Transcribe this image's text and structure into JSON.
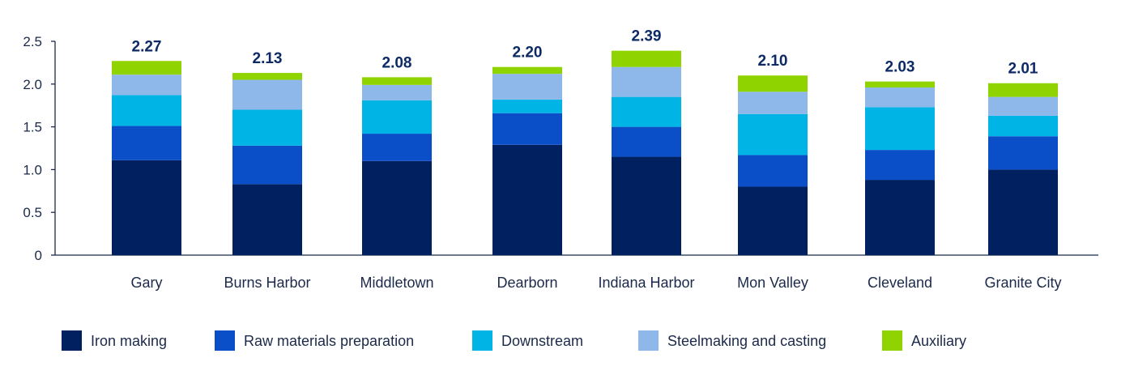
{
  "chart_data": {
    "type": "bar",
    "stacked": true,
    "categories": [
      "Gary",
      "Burns Harbor",
      "Middletown",
      "Dearborn",
      "Indiana Harbor",
      "Mon Valley",
      "Cleveland",
      "Granite City"
    ],
    "totals": [
      "2.27",
      "2.13",
      "2.08",
      "2.20",
      "2.39",
      "2.10",
      "2.03",
      "2.01"
    ],
    "series": [
      {
        "name": "Iron making",
        "color": "#002060",
        "values": [
          1.11,
          0.83,
          1.1,
          1.29,
          1.15,
          0.8,
          0.88,
          1.0
        ]
      },
      {
        "name": "Raw materials preparation",
        "color": "#0a4fc8",
        "values": [
          0.4,
          0.45,
          0.32,
          0.37,
          0.35,
          0.37,
          0.35,
          0.39
        ]
      },
      {
        "name": "Downstream",
        "color": "#00b5e6",
        "values": [
          0.36,
          0.42,
          0.39,
          0.16,
          0.35,
          0.48,
          0.5,
          0.24
        ]
      },
      {
        "name": "Steelmaking and casting",
        "color": "#8fb8ea",
        "values": [
          0.24,
          0.35,
          0.18,
          0.3,
          0.35,
          0.26,
          0.23,
          0.22
        ]
      },
      {
        "name": "Auxiliary",
        "color": "#8fd400",
        "values": [
          0.16,
          0.08,
          0.09,
          0.08,
          0.19,
          0.19,
          0.07,
          0.16
        ]
      }
    ],
    "yticks": [
      "0",
      "0.5",
      "1.0",
      "1.5",
      "2.0",
      "2.5"
    ],
    "ylim": [
      0,
      2.5
    ],
    "grid": false,
    "legend_position": "bottom"
  }
}
